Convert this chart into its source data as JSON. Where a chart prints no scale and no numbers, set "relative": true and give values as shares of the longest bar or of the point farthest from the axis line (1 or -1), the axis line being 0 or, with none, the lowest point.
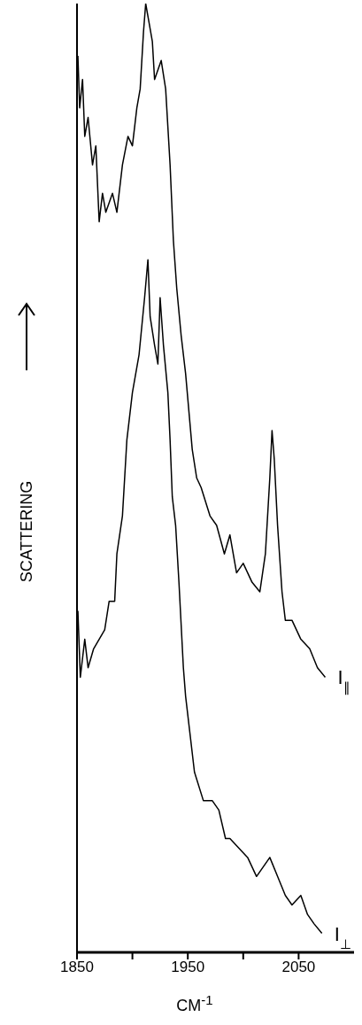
{
  "chart_data": {
    "type": "line",
    "xlabel": "CM$^{-1}$",
    "ylabel": "SCATTERING",
    "relative": true,
    "xlim": [
      1850,
      2100
    ],
    "xticks": [
      1850,
      {
        "value": 1900,
        "label": null
      },
      1950,
      {
        "value": 2000,
        "label": null
      },
      2050
    ],
    "marker": "none",
    "line_style": "solid",
    "series": [
      {
        "name": "I$_{∥}$",
        "color": "#000000",
        "x": [
          1850.8,
          1852.4,
          1855,
          1857,
          1860,
          1864,
          1867,
          1870,
          1873,
          1876,
          1882,
          1886,
          1891,
          1896,
          1900,
          1904,
          1907,
          1910,
          1912,
          1915,
          1918,
          1920,
          1923,
          1926,
          1930,
          1934,
          1937,
          1940,
          1944,
          1948,
          1954,
          1958,
          1962,
          1970,
          1976,
          1983,
          1988,
          1994,
          2000,
          2008,
          2015,
          2020,
          2024,
          2026,
          2028,
          2031,
          2035,
          2038,
          2044,
          2052,
          2060,
          2067,
          2074
        ],
        "values": [
          0.945,
          0.89,
          0.92,
          0.86,
          0.88,
          0.83,
          0.85,
          0.77,
          0.8,
          0.78,
          0.8,
          0.78,
          0.83,
          0.86,
          0.85,
          0.89,
          0.91,
          0.97,
          1.0,
          0.98,
          0.96,
          0.92,
          0.93,
          0.94,
          0.91,
          0.83,
          0.75,
          0.7,
          0.65,
          0.61,
          0.53,
          0.5,
          0.49,
          0.46,
          0.45,
          0.42,
          0.44,
          0.4,
          0.41,
          0.39,
          0.38,
          0.42,
          0.5,
          0.55,
          0.52,
          0.45,
          0.38,
          0.35,
          0.35,
          0.33,
          0.32,
          0.3,
          0.29
        ]
      },
      {
        "name": "I$_{⊥}$",
        "color": "#000000",
        "x": [
          1850.8,
          1853,
          1857,
          1860,
          1865,
          1870,
          1875,
          1879,
          1884,
          1886,
          1891,
          1895,
          1900,
          1906,
          1911,
          1914,
          1916,
          1920,
          1923,
          1925,
          1928,
          1932,
          1934,
          1936,
          1939,
          1942,
          1946,
          1948,
          1952,
          1956,
          1964,
          1972,
          1978,
          1984,
          1988,
          1996,
          2004,
          2012,
          2018,
          2024,
          2031,
          2038,
          2044,
          2052,
          2058,
          2064,
          2071
        ],
        "values": [
          0.36,
          0.29,
          0.33,
          0.3,
          0.32,
          0.33,
          0.34,
          0.37,
          0.37,
          0.42,
          0.46,
          0.54,
          0.59,
          0.63,
          0.69,
          0.73,
          0.67,
          0.64,
          0.62,
          0.69,
          0.64,
          0.59,
          0.54,
          0.48,
          0.45,
          0.39,
          0.3,
          0.27,
          0.23,
          0.19,
          0.16,
          0.16,
          0.15,
          0.12,
          0.12,
          0.11,
          0.1,
          0.08,
          0.09,
          0.1,
          0.08,
          0.06,
          0.05,
          0.06,
          0.04,
          0.03,
          0.02
        ]
      }
    ]
  }
}
